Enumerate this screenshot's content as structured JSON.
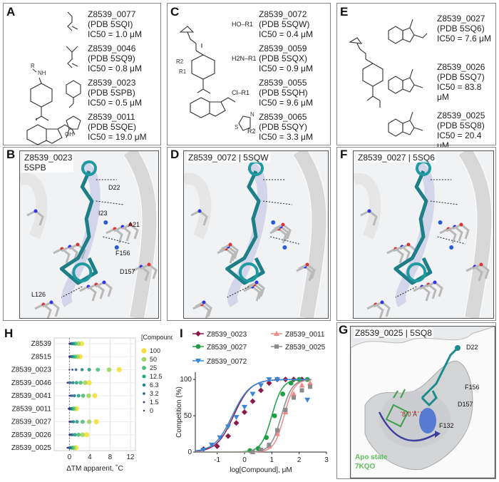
{
  "panels": {
    "A": {
      "label": "A",
      "r_label": "R",
      "nh": "NH",
      "oh": "OH",
      "compounds": [
        {
          "id": "Z8539_0077",
          "pdb": "(PDB 5SQI)",
          "ic50": "IC50 = 1.0 μM"
        },
        {
          "id": "Z8539_0046",
          "pdb": "(PDB 5SQ9)",
          "ic50": "IC50 = 0.8 μM"
        },
        {
          "id": "Z8539_0023",
          "pdb": "(PDB 5SPB)",
          "ic50": "IC50 = 0.5 μM"
        },
        {
          "id": "Z8539_0011",
          "pdb": "(PDB 5SQE)",
          "ic50": "IC50 = 19.0 μM"
        }
      ]
    },
    "C": {
      "label": "C",
      "r1": "R1",
      "r2": "R2",
      "compounds": [
        {
          "id": "Z8539_0072",
          "pdb": "(PDB 5SQW)",
          "ic50": "IC50 = 0.4 μM",
          "group": "HO–R1"
        },
        {
          "id": "Z8539_0059",
          "pdb": "(PDB 5SQX)",
          "ic50": "IC50 = 0.9 μM",
          "group": "H2N–R1"
        },
        {
          "id": "Z8539_0055",
          "pdb": "(PDB 5SQH)",
          "ic50": "IC50 = 9.6 μM",
          "group": "Cl–R1"
        },
        {
          "id": "Z8539_0065",
          "pdb": "(PDB 5SQY)",
          "ic50": "IC50 = 3.3 μM",
          "group": "R2"
        }
      ]
    },
    "E": {
      "label": "E",
      "compounds": [
        {
          "id": "Z8539_0027",
          "pdb": "(PDB 5SQ6)",
          "ic50": "IC50 = 7.6 μM"
        },
        {
          "id": "Z8539_0026",
          "pdb": "(PDB 5SQ7)",
          "ic50": "IC50 = 83.8 μM"
        },
        {
          "id": "Z8539_0025",
          "pdb": "(PDB 5SQ8)",
          "ic50": "IC50 = 20.4 μM"
        }
      ]
    },
    "B": {
      "label": "B",
      "caption1": "Z8539_0023",
      "caption2": "5SPB",
      "residues": [
        "D22",
        "I23",
        "A21",
        "F156",
        "D157",
        "L126"
      ]
    },
    "D": {
      "label": "D",
      "caption": "Z8539_0072 | 5SQW"
    },
    "F": {
      "label": "F",
      "caption": "Z8539_0027 | 5SQ6"
    },
    "G": {
      "label": "G",
      "caption": "Z8539_0025 | 5SQ8",
      "residues": [
        "D22",
        "F156",
        "D157",
        "F132"
      ],
      "distance": "8.0 Å",
      "apo_line1": "Apo state",
      "apo_line2": "7KQO"
    },
    "H": {
      "label": "H"
    },
    "I": {
      "label": "I"
    }
  },
  "chart_data": [
    {
      "type": "scatter",
      "panel": "H",
      "xlabel": "ΔTM apparent, ˚C",
      "xlim": [
        -3,
        13
      ],
      "xticks": [
        0,
        4,
        8,
        12
      ],
      "categories": [
        "Z8539",
        "Z8515",
        "Z8539_0023",
        "Z8539_0046",
        "Z8539_0041",
        "Z8539_0011",
        "Z8539_0027",
        "Z8539_0026",
        "Z8539_0025"
      ],
      "legend_title": "[Compound] μM",
      "concentrations": [
        "100",
        "50",
        "25",
        "12.5",
        "6.3",
        "3.2",
        "1.5",
        "0"
      ],
      "concentration_colors": [
        "#f5e03a",
        "#9fd65a",
        "#4cbf77",
        "#22a386",
        "#208289",
        "#2e6891",
        "#3f4a8a",
        "#48216b"
      ],
      "values": [
        [
          2.4,
          1.8,
          1.2,
          0.8,
          0.5,
          0.3,
          0.1,
          0.0
        ],
        [
          2.1,
          1.6,
          1.1,
          0.7,
          0.4,
          0.2,
          0.0,
          0.0
        ],
        [
          9.8,
          7.8,
          5.6,
          3.9,
          2.5,
          1.3,
          0.6,
          0.0
        ],
        [
          3.9,
          3.1,
          2.2,
          1.4,
          0.7,
          0.2,
          -0.2,
          -0.4
        ],
        [
          5.0,
          3.8,
          2.7,
          1.8,
          1.0,
          0.5,
          0.2,
          0.0
        ],
        [
          1.4,
          1.0,
          0.7,
          0.4,
          0.2,
          0.0,
          -0.1,
          0.0
        ],
        [
          5.3,
          3.9,
          2.6,
          1.5,
          0.8,
          0.4,
          0.1,
          0.0
        ],
        [
          3.4,
          2.6,
          1.8,
          1.1,
          0.6,
          0.3,
          0.1,
          0.0
        ],
        [
          1.3,
          0.9,
          0.6,
          0.3,
          0.1,
          0.0,
          -0.2,
          -0.4
        ]
      ]
    },
    {
      "type": "line",
      "panel": "I",
      "xlabel": "log[Compound], μM",
      "ylabel": "Competition (%)",
      "xlim": [
        -1.8,
        3
      ],
      "ylim": [
        0,
        110
      ],
      "xticks": [
        -1,
        0,
        1,
        2,
        3
      ],
      "yticks": [
        0,
        50,
        100
      ],
      "series": [
        {
          "name": "Z8539_0023",
          "color": "#8b1a4a",
          "marker": "diamond",
          "x": [
            -1.5,
            -1.0,
            -0.6,
            -0.3,
            0.0,
            0.3,
            0.6,
            0.9,
            1.2,
            1.5,
            1.8,
            2.1
          ],
          "y": [
            4,
            8,
            22,
            40,
            55,
            70,
            85,
            95,
            100,
            100,
            100,
            100
          ],
          "ec50": -0.4,
          "hill": 1.0
        },
        {
          "name": "Z8539_0027",
          "color": "#1e9e45",
          "marker": "circle",
          "x": [
            0.2,
            0.5,
            0.8,
            1.1,
            1.4,
            1.7,
            2.0,
            2.3
          ],
          "y": [
            2,
            5,
            20,
            50,
            80,
            95,
            100,
            100
          ],
          "ec50": 1.0,
          "hill": 1.6
        },
        {
          "name": "Z8539_0072",
          "color": "#3a86d6",
          "marker": "triangle-down",
          "x": [
            -1.5,
            -1.2,
            -0.9,
            -0.6,
            -0.3,
            0.0,
            0.3,
            0.6,
            0.9,
            1.2
          ],
          "y": [
            3,
            10,
            20,
            35,
            48,
            62,
            80,
            92,
            100,
            100
          ],
          "ec50": -0.45,
          "hill": 0.95
        },
        {
          "name": "Z8539_0011",
          "color": "#f08a8a",
          "marker": "triangle-up",
          "x": [
            0.3,
            0.6,
            0.9,
            1.2,
            1.5,
            1.8,
            2.1,
            2.4
          ],
          "y": [
            0,
            2,
            8,
            25,
            55,
            80,
            92,
            95
          ],
          "ec50": 1.45,
          "hill": 1.7
        },
        {
          "name": "Z8539_0025",
          "color": "#8c8c8c",
          "marker": "square",
          "x": [
            0.3,
            0.6,
            0.9,
            1.2,
            1.5,
            1.8,
            2.1,
            2.4
          ],
          "y": [
            0,
            3,
            10,
            30,
            58,
            75,
            85,
            90
          ],
          "ec50": 1.35,
          "hill": 1.6
        }
      ],
      "extra_point": {
        "x": 2.3,
        "y": 72,
        "series": "Z8539_0072"
      }
    }
  ]
}
